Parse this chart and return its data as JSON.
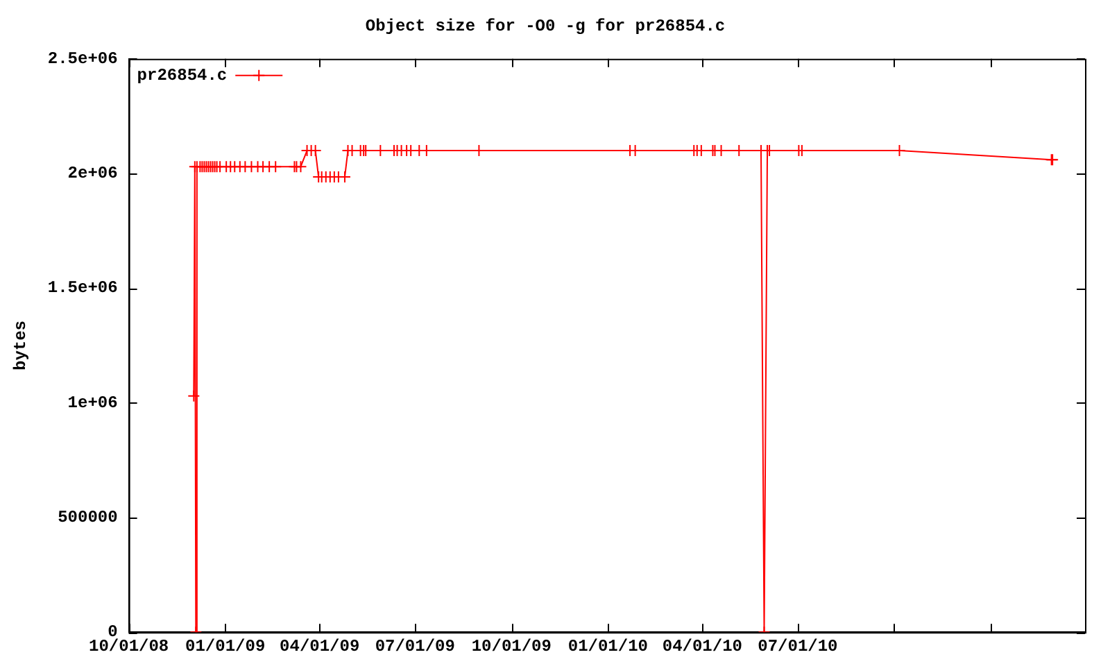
{
  "chart_data": {
    "type": "line",
    "title": "Object size for -O0 -g for pr26854.c",
    "ylabel": "bytes",
    "xlim": [
      "2008-10-01",
      "2011-04-01"
    ],
    "xticks": [
      {
        "value": "2008-10-01",
        "label": "10/01/08"
      },
      {
        "value": "2009-01-01",
        "label": "01/01/09"
      },
      {
        "value": "2009-04-01",
        "label": "04/01/09"
      },
      {
        "value": "2009-07-01",
        "label": "07/01/09"
      },
      {
        "value": "2009-10-01",
        "label": "10/01/09"
      },
      {
        "value": "2010-01-01",
        "label": "01/01/10"
      },
      {
        "value": "2010-04-01",
        "label": "04/01/10"
      },
      {
        "value": "2010-07-01",
        "label": "07/01/10"
      },
      {
        "value": "2010-10-01",
        "label": null
      },
      {
        "value": "2011-01-01",
        "label": null
      }
    ],
    "ylim": [
      0,
      2500000
    ],
    "yticks": [
      0,
      500000,
      {
        "value": 1000000,
        "label": "1e+06"
      },
      {
        "value": 1500000,
        "label": "1.5e+06"
      },
      {
        "value": 2000000,
        "label": "2e+06"
      },
      {
        "value": 2500000,
        "label": "2.5e+06"
      }
    ],
    "x": [
      "2008-12-02",
      "2008-12-03",
      "2008-12-04",
      "2008-12-05",
      "2008-12-08",
      "2008-12-10",
      "2008-12-12",
      "2008-12-14",
      "2008-12-16",
      "2008-12-18",
      "2008-12-20",
      "2008-12-22",
      "2008-12-24",
      "2008-12-27",
      "2009-01-02",
      "2009-01-06",
      "2009-01-10",
      "2009-01-15",
      "2009-01-20",
      "2009-01-26",
      "2009-02-01",
      "2009-02-06",
      "2009-02-12",
      "2009-02-18",
      "2009-03-08",
      "2009-03-10",
      "2009-03-14",
      "2009-03-20",
      "2009-03-24",
      "2009-03-28",
      "2009-03-31",
      "2009-04-03",
      "2009-04-07",
      "2009-04-11",
      "2009-04-15",
      "2009-04-19",
      "2009-04-25",
      "2009-04-28",
      "2009-05-02",
      "2009-05-10",
      "2009-05-13",
      "2009-05-15",
      "2009-05-29",
      "2009-06-11",
      "2009-06-14",
      "2009-06-18",
      "2009-06-23",
      "2009-06-27",
      "2009-07-05",
      "2009-07-12",
      "2009-08-31",
      "2010-01-22",
      "2010-01-27",
      "2010-03-24",
      "2010-03-27",
      "2010-03-31",
      "2010-04-11",
      "2010-04-13",
      "2010-04-19",
      "2010-05-06",
      "2010-05-27",
      "2010-05-30",
      "2010-06-02",
      "2010-06-04",
      "2010-07-02",
      "2010-07-05",
      "2010-10-06",
      "2011-02-28",
      "2011-03-01"
    ],
    "series": [
      {
        "name": "pr26854.c",
        "color": "#ff0000",
        "values": [
          1030000,
          2030000,
          0,
          2030000,
          2030000,
          2030000,
          2030000,
          2030000,
          2030000,
          2030000,
          2030000,
          2030000,
          2030000,
          2030000,
          2030000,
          2030000,
          2030000,
          2030000,
          2030000,
          2030000,
          2030000,
          2030000,
          2030000,
          2030000,
          2030000,
          2030000,
          2030000,
          2100000,
          2100000,
          2100000,
          1985000,
          1985000,
          1985000,
          1985000,
          1985000,
          1985000,
          1985000,
          2100000,
          2100000,
          2100000,
          2100000,
          2100000,
          2100000,
          2100000,
          2100000,
          2100000,
          2100000,
          2100000,
          2100000,
          2100000,
          2100000,
          2100000,
          2100000,
          2100000,
          2100000,
          2100000,
          2100000,
          2100000,
          2100000,
          2100000,
          2100000,
          0,
          2100000,
          2100000,
          2100000,
          2100000,
          2100000,
          2060000,
          2060000
        ]
      }
    ],
    "legend": "top left",
    "marker": "cross",
    "line_style": "solid",
    "grid": false
  }
}
